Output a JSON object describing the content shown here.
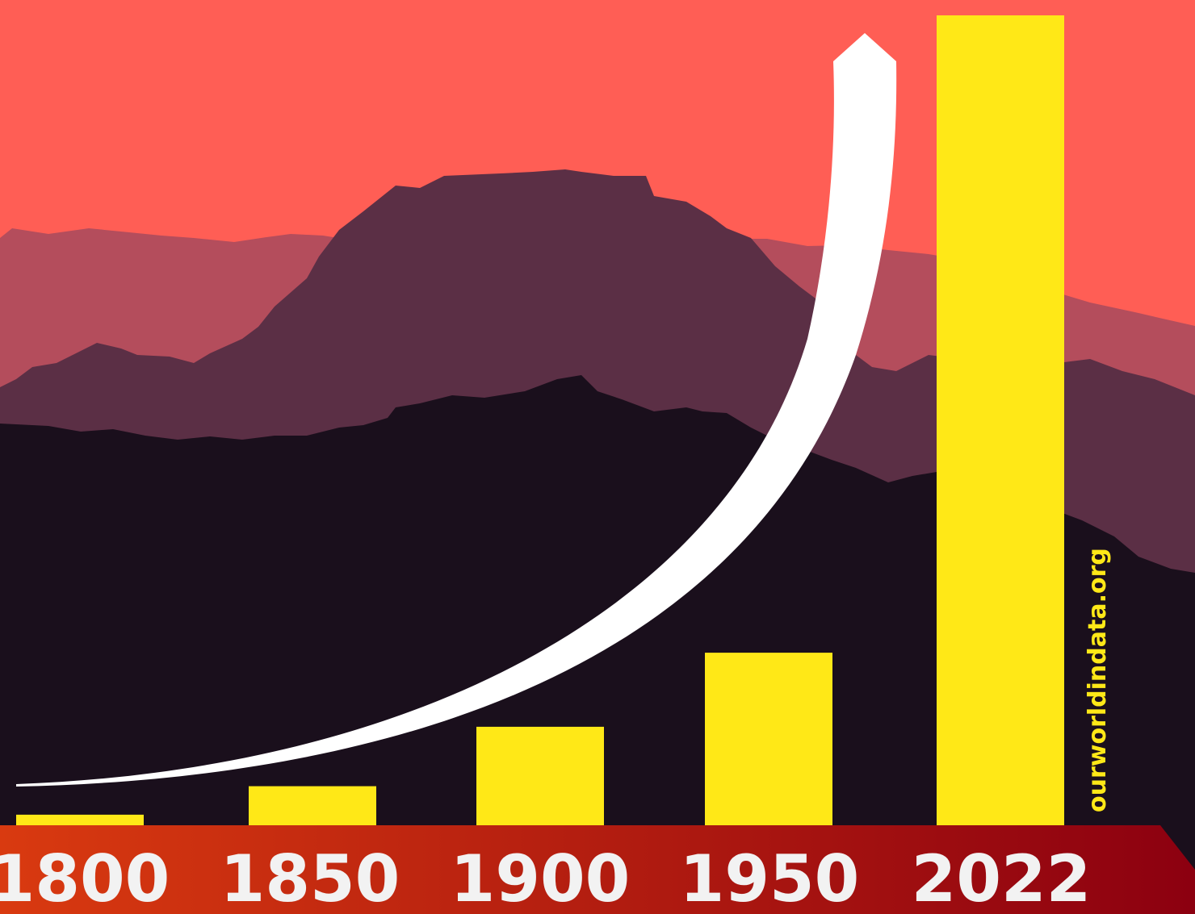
{
  "chart_data": {
    "type": "bar",
    "categories": [
      "1800",
      "1850",
      "1900",
      "1950",
      "2022"
    ],
    "values": [
      1.3,
      4.8,
      12.1,
      21.2,
      99.5
    ],
    "ylim": [
      0,
      100
    ],
    "title": "",
    "xlabel": "",
    "ylabel": "",
    "grid": false,
    "annotation": "exponential growth arrow",
    "source": "ourworldindata.org"
  },
  "colors": {
    "sky": "#ff5e55",
    "ridge_far": "#b44d5c",
    "ridge_mid": "#5b2f45",
    "ridge_near": "#1a0f1c",
    "bar": "#ffe817",
    "timeline_start": "#d93a10",
    "timeline_end": "#8c0010",
    "arrow": "#ffffff",
    "label": "#f2f2f2"
  }
}
